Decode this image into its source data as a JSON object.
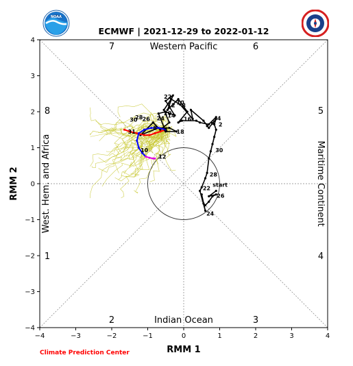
{
  "left_logo": {
    "text": "NOAA"
  },
  "right_logo": {
    "text": "NATIONAL WEATHER SERVICE"
  },
  "footer": {
    "credit": "Climate Prediction Center"
  },
  "chart_data": {
    "type": "line",
    "title": "ECMWF | 2021-12-29 to 2022-01-12",
    "xlabel": "RMM 1",
    "ylabel": "RMM 2",
    "xlim": [
      -4,
      4
    ],
    "ylim": [
      -4,
      4
    ],
    "xticks": [
      "−4",
      "−3",
      "−2",
      "−1",
      "0",
      "1",
      "2",
      "3",
      "4"
    ],
    "yticks": [
      "−4",
      "−3",
      "−2",
      "−1",
      "0",
      "1",
      "2",
      "3",
      "4"
    ],
    "unit_circle_radius": 1,
    "phase_labels": [
      "1",
      "2",
      "3",
      "4",
      "5",
      "6",
      "7",
      "8"
    ],
    "region_labels": {
      "top": "Western Pacific",
      "bottom": "Indian Ocean",
      "left": "West. Hem. and Africa",
      "right": "Maritime Continent"
    },
    "colors": {
      "observed": "#000000",
      "ensemble": "#c8c832",
      "mean_week1": "#ff0000",
      "mean_week2": "#0000ff",
      "mean_week3": "#e000e0"
    },
    "observed": {
      "start_label": "start",
      "points": [
        [
          0.9,
          -0.2
        ],
        [
          0.7,
          -0.35
        ],
        [
          0.9,
          -0.3
        ],
        [
          0.8,
          -0.35
        ],
        [
          0.7,
          -0.5
        ],
        [
          0.6,
          -0.6
        ],
        [
          0.55,
          -0.55
        ],
        [
          0.5,
          -0.3
        ],
        [
          0.6,
          -0.75
        ],
        [
          0.45,
          -0.2
        ],
        [
          0.5,
          -0.1
        ],
        [
          0.6,
          0.15
        ],
        [
          0.65,
          0.3
        ],
        [
          0.7,
          0.7
        ],
        [
          0.75,
          0.9
        ],
        [
          0.8,
          1.1
        ],
        [
          0.85,
          1.3
        ],
        [
          0.9,
          1.5
        ],
        [
          0.85,
          1.65
        ],
        [
          0.9,
          1.8
        ],
        [
          0.7,
          1.55
        ],
        [
          0.55,
          1.75
        ],
        [
          0.2,
          2.05
        ],
        [
          0.25,
          1.8
        ],
        [
          -0.1,
          2.2
        ],
        [
          -0.35,
          2.35
        ],
        [
          -0.55,
          2.05
        ],
        [
          -0.4,
          1.7
        ],
        [
          -0.65,
          1.5
        ],
        [
          -0.85,
          1.7
        ],
        [
          -1.2,
          1.35
        ],
        [
          -0.7,
          1.55
        ],
        [
          -0.4,
          1.55
        ],
        [
          -0.2,
          1.45
        ],
        [
          -0.5,
          1.45
        ],
        [
          -0.7,
          1.95
        ],
        [
          -0.5,
          2.0
        ],
        [
          -0.25,
          1.9
        ],
        [
          -0.5,
          2.3
        ],
        [
          -0.3,
          2.45
        ],
        [
          -0.45,
          2.05
        ],
        [
          -0.15,
          2.35
        ],
        [
          0.1,
          2.0
        ],
        [
          -0.15,
          1.7
        ],
        [
          -0.05,
          1.75
        ],
        [
          0.35,
          1.75
        ],
        [
          0.45,
          1.7
        ],
        [
          0.7,
          1.65
        ],
        [
          0.9,
          1.85
        ],
        [
          0.65,
          1.6
        ]
      ],
      "day_labels": [
        {
          "text": "22",
          "x": 0.53,
          "y": -0.12
        },
        {
          "text": "24",
          "x": 0.63,
          "y": -0.83
        },
        {
          "text": "26",
          "x": 0.92,
          "y": -0.33
        },
        {
          "text": "28",
          "x": 0.72,
          "y": 0.26
        },
        {
          "text": "30",
          "x": 0.88,
          "y": 0.93
        },
        {
          "text": "2",
          "x": 0.97,
          "y": 1.65
        },
        {
          "text": "4",
          "x": 0.93,
          "y": 1.82
        },
        {
          "text": "6",
          "x": 0.75,
          "y": 1.7
        },
        {
          "text": "8",
          "x": -0.05,
          "y": 2.18
        },
        {
          "text": "10",
          "x": -0.2,
          "y": 2.26
        },
        {
          "text": "12",
          "x": -0.45,
          "y": 2.18
        },
        {
          "text": "14",
          "x": -0.45,
          "y": 1.9
        },
        {
          "text": "16",
          "x": 0.0,
          "y": 1.8
        },
        {
          "text": "18",
          "x": -0.2,
          "y": 1.45
        },
        {
          "text": "20",
          "x": -0.55,
          "y": 1.96
        },
        {
          "text": "22",
          "x": -0.55,
          "y": 2.42
        },
        {
          "text": "24",
          "x": -0.75,
          "y": 1.82
        },
        {
          "text": "26",
          "x": -1.15,
          "y": 1.8
        },
        {
          "text": "28",
          "x": -1.35,
          "y": 1.85
        },
        {
          "text": "30",
          "x": -1.5,
          "y": 1.78
        }
      ]
    },
    "forecast_mean": {
      "week1": [
        [
          -0.5,
          1.5
        ],
        [
          -0.65,
          1.45
        ],
        [
          -0.8,
          1.4
        ],
        [
          -0.95,
          1.35
        ],
        [
          -1.1,
          1.35
        ],
        [
          -1.3,
          1.4
        ],
        [
          -1.5,
          1.45
        ],
        [
          -1.65,
          1.5
        ]
      ],
      "week2": [
        [
          -0.5,
          1.5
        ],
        [
          -0.7,
          1.55
        ],
        [
          -0.9,
          1.55
        ],
        [
          -1.1,
          1.5
        ],
        [
          -1.25,
          1.4
        ],
        [
          -1.3,
          1.2
        ],
        [
          -1.25,
          1.0
        ],
        [
          -1.15,
          0.85
        ],
        [
          -1.05,
          0.75
        ]
      ],
      "week3": [
        [
          -1.05,
          0.75
        ],
        [
          -0.95,
          0.72
        ],
        [
          -0.85,
          0.7
        ],
        [
          -0.8,
          0.7
        ]
      ],
      "day_labels": [
        {
          "text": "31",
          "x": -1.55,
          "y": 1.45
        },
        {
          "text": "4",
          "x": -0.55,
          "y": 1.5
        },
        {
          "text": "8",
          "x": -0.85,
          "y": 1.55
        },
        {
          "text": "10",
          "x": -1.2,
          "y": 0.93
        },
        {
          "text": "12",
          "x": -0.7,
          "y": 0.75
        }
      ]
    },
    "ensemble": {
      "members": 51,
      "days": 15
    }
  }
}
